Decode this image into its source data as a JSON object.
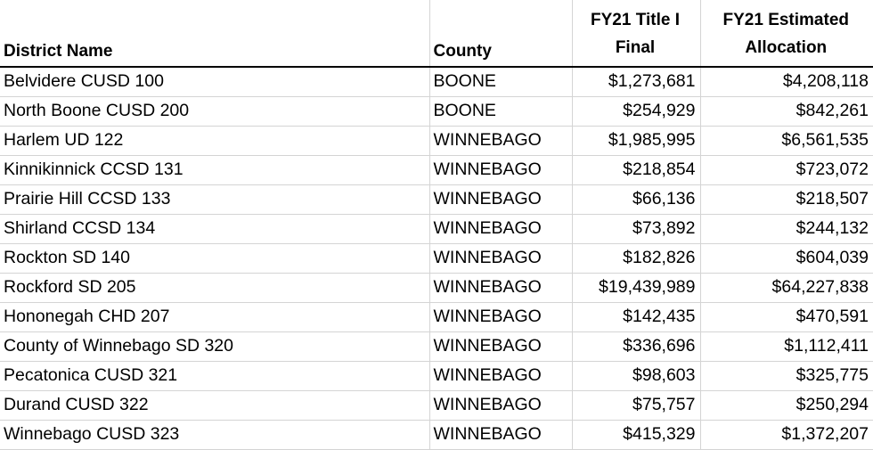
{
  "headers": {
    "district": "District Name",
    "county": "County",
    "title1_line1": "FY21 Title I",
    "title1_line2": "Final",
    "est_line1": "FY21 Estimated",
    "est_line2": "Allocation"
  },
  "rows": [
    {
      "district": "Belvidere CUSD 100",
      "county": "BOONE",
      "title1": "$1,273,681",
      "estimated": "$4,208,118"
    },
    {
      "district": "North Boone CUSD 200",
      "county": "BOONE",
      "title1": "$254,929",
      "estimated": "$842,261"
    },
    {
      "district": "Harlem UD 122",
      "county": "WINNEBAGO",
      "title1": "$1,985,995",
      "estimated": "$6,561,535"
    },
    {
      "district": "Kinnikinnick CCSD 131",
      "county": "WINNEBAGO",
      "title1": "$218,854",
      "estimated": "$723,072"
    },
    {
      "district": "Prairie Hill CCSD 133",
      "county": "WINNEBAGO",
      "title1": "$66,136",
      "estimated": "$218,507"
    },
    {
      "district": "Shirland CCSD 134",
      "county": "WINNEBAGO",
      "title1": "$73,892",
      "estimated": "$244,132"
    },
    {
      "district": "Rockton SD 140",
      "county": "WINNEBAGO",
      "title1": "$182,826",
      "estimated": "$604,039"
    },
    {
      "district": "Rockford SD 205",
      "county": "WINNEBAGO",
      "title1": "$19,439,989",
      "estimated": "$64,227,838"
    },
    {
      "district": "Hononegah CHD 207",
      "county": "WINNEBAGO",
      "title1": "$142,435",
      "estimated": "$470,591"
    },
    {
      "district": "County of Winnebago SD 320",
      "county": "WINNEBAGO",
      "title1": "$336,696",
      "estimated": "$1,112,411"
    },
    {
      "district": "Pecatonica CUSD 321",
      "county": "WINNEBAGO",
      "title1": "$98,603",
      "estimated": "$325,775"
    },
    {
      "district": "Durand CUSD 322",
      "county": "WINNEBAGO",
      "title1": "$75,757",
      "estimated": "$250,294"
    },
    {
      "district": "Winnebago CUSD 323",
      "county": "WINNEBAGO",
      "title1": "$415,329",
      "estimated": "$1,372,207"
    }
  ]
}
